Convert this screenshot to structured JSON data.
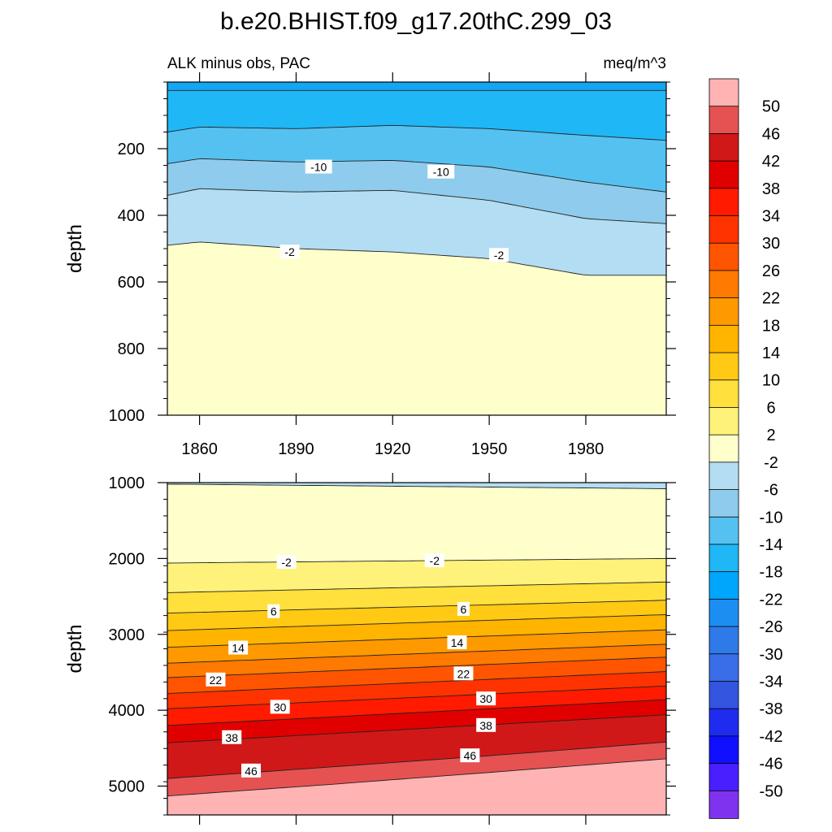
{
  "figure": {
    "title": "b.e20.BHIST.f09_g17.20thC.299_03",
    "left_label": "ALK minus obs, PAC",
    "right_label": "meq/m^3"
  },
  "chart_data": [
    {
      "type": "contour",
      "panel": "upper",
      "title": "b.e20.BHIST.f09_g17.20thC.299_03",
      "subtitle_left": "ALK minus obs, PAC",
      "subtitle_right": "meq/m^3",
      "xlabel": "",
      "ylabel": "depth",
      "xlim": [
        1850,
        2005
      ],
      "ylim": [
        1000,
        0
      ],
      "x_ticks": [
        1860,
        1890,
        1920,
        1950,
        1980
      ],
      "y_ticks": [
        200,
        400,
        600,
        800,
        1000
      ],
      "levels": [
        -2,
        -6,
        -10,
        -14,
        -18
      ],
      "boundaries": [
        {
          "level": -18,
          "x": [
            1850,
            1890,
            1920,
            1950,
            2005
          ],
          "y": [
            25,
            25,
            25,
            25,
            25
          ]
        },
        {
          "level": -14,
          "x": [
            1850,
            1860,
            1890,
            1920,
            1950,
            1980,
            2005
          ],
          "y": [
            150,
            135,
            140,
            130,
            140,
            160,
            175
          ]
        },
        {
          "level": -10,
          "x": [
            1850,
            1860,
            1890,
            1920,
            1950,
            1980,
            2005
          ],
          "y": [
            245,
            230,
            240,
            235,
            255,
            300,
            330
          ]
        },
        {
          "level": -6,
          "x": [
            1850,
            1860,
            1890,
            1920,
            1950,
            1980,
            2005
          ],
          "y": [
            340,
            320,
            330,
            325,
            355,
            410,
            425
          ]
        },
        {
          "level": -2,
          "x": [
            1850,
            1860,
            1890,
            1920,
            1950,
            1980,
            2005
          ],
          "y": [
            490,
            480,
            500,
            510,
            530,
            580,
            580
          ]
        }
      ],
      "contour_labels": [
        {
          "text": "-10",
          "x": 1897,
          "y": 255
        },
        {
          "text": "-10",
          "x": 1935,
          "y": 270
        },
        {
          "text": "-2",
          "x": 1888,
          "y": 510
        },
        {
          "text": "-2",
          "x": 1953,
          "y": 520
        }
      ]
    },
    {
      "type": "contour",
      "panel": "lower",
      "xlabel": "",
      "ylabel": "depth",
      "xlim": [
        1850,
        2005
      ],
      "ylim": [
        5380,
        1000
      ],
      "x_ticks": [
        1860,
        1890,
        1920,
        1950,
        1980
      ],
      "y_ticks": [
        1000,
        2000,
        3000,
        4000,
        5000
      ],
      "levels": [
        -2,
        2,
        6,
        10,
        14,
        18,
        22,
        26,
        30,
        34,
        38,
        42,
        46,
        50
      ],
      "boundaries": [
        {
          "level": -2,
          "x": [
            1850,
            2005
          ],
          "y": [
            1020,
            1080
          ]
        },
        {
          "level": 2,
          "x": [
            1850,
            2005
          ],
          "y": [
            2060,
            2000
          ]
        },
        {
          "level": 6,
          "x": [
            1850,
            2005
          ],
          "y": [
            2450,
            2310
          ]
        },
        {
          "level": 10,
          "x": [
            1850,
            2005
          ],
          "y": [
            2720,
            2550
          ]
        },
        {
          "level": 14,
          "x": [
            1850,
            2005
          ],
          "y": [
            2950,
            2740
          ]
        },
        {
          "level": 18,
          "x": [
            1850,
            2005
          ],
          "y": [
            3170,
            2940
          ]
        },
        {
          "level": 22,
          "x": [
            1850,
            2005
          ],
          "y": [
            3380,
            3130
          ]
        },
        {
          "level": 26,
          "x": [
            1850,
            2005
          ],
          "y": [
            3570,
            3300
          ]
        },
        {
          "level": 30,
          "x": [
            1850,
            2005
          ],
          "y": [
            3780,
            3490
          ]
        },
        {
          "level": 34,
          "x": [
            1850,
            2005
          ],
          "y": [
            3980,
            3680
          ]
        },
        {
          "level": 38,
          "x": [
            1850,
            2005
          ],
          "y": [
            4200,
            3860
          ]
        },
        {
          "level": 42,
          "x": [
            1850,
            2005
          ],
          "y": [
            4430,
            4060
          ]
        },
        {
          "level": 46,
          "x": [
            1850,
            1900,
            1950,
            2005
          ],
          "y": [
            4900,
            4750,
            4600,
            4420
          ]
        },
        {
          "level": 50,
          "x": [
            1850,
            1900,
            1950,
            2005
          ],
          "y": [
            5130,
            4980,
            4820,
            4640
          ]
        }
      ],
      "contour_labels": [
        {
          "text": "-2",
          "x": 1887,
          "y": 2050
        },
        {
          "text": "-2",
          "x": 1933,
          "y": 2030
        },
        {
          "text": "6",
          "x": 1883,
          "y": 2700
        },
        {
          "text": "6",
          "x": 1942,
          "y": 2670
        },
        {
          "text": "14",
          "x": 1872,
          "y": 3180
        },
        {
          "text": "14",
          "x": 1940,
          "y": 3110
        },
        {
          "text": "22",
          "x": 1865,
          "y": 3600
        },
        {
          "text": "22",
          "x": 1942,
          "y": 3520
        },
        {
          "text": "30",
          "x": 1885,
          "y": 3960
        },
        {
          "text": "30",
          "x": 1949,
          "y": 3850
        },
        {
          "text": "38",
          "x": 1870,
          "y": 4360
        },
        {
          "text": "38",
          "x": 1949,
          "y": 4200
        },
        {
          "text": "46",
          "x": 1876,
          "y": 4800
        },
        {
          "text": "46",
          "x": 1944,
          "y": 4600
        }
      ]
    }
  ],
  "colorbar": {
    "labels": [
      "50",
      "46",
      "42",
      "38",
      "34",
      "30",
      "26",
      "22",
      "18",
      "14",
      "10",
      "6",
      "2",
      "-2",
      "-6",
      "-10",
      "-14",
      "-18",
      "-22",
      "-26",
      "-30",
      "-34",
      "-38",
      "-42",
      "-46",
      "-50"
    ],
    "colors": [
      "#ffb3b3",
      "#e65252",
      "#d01818",
      "#e00000",
      "#ff1a00",
      "#ff3300",
      "#ff5500",
      "#ff7a00",
      "#ff9900",
      "#ffb400",
      "#ffc914",
      "#ffe03c",
      "#fff27a",
      "#ffffcc",
      "#b3ddf2",
      "#8ecbec",
      "#54c1f1",
      "#1fb7f5",
      "#00a6fb",
      "#1c8ef2",
      "#2e7ae8",
      "#3a6ee8",
      "#3355e0",
      "#1f2cf0",
      "#1010ff",
      "#4a1fff",
      "#8033ee"
    ]
  },
  "upper_fill_colors": [
    "#14a6f2",
    "#1fb7f5",
    "#54c1f1",
    "#8ecbec",
    "#b3ddf2",
    "#ffffcc"
  ],
  "lower_fill_colors": [
    "#b3ddf2",
    "#ffffcc",
    "#fff27a",
    "#ffe03c",
    "#ffc914",
    "#ffb400",
    "#ff9900",
    "#ff7a00",
    "#ff5500",
    "#ff3300",
    "#ff1a00",
    "#e00000",
    "#d01818",
    "#e65252",
    "#ffb3b3"
  ]
}
